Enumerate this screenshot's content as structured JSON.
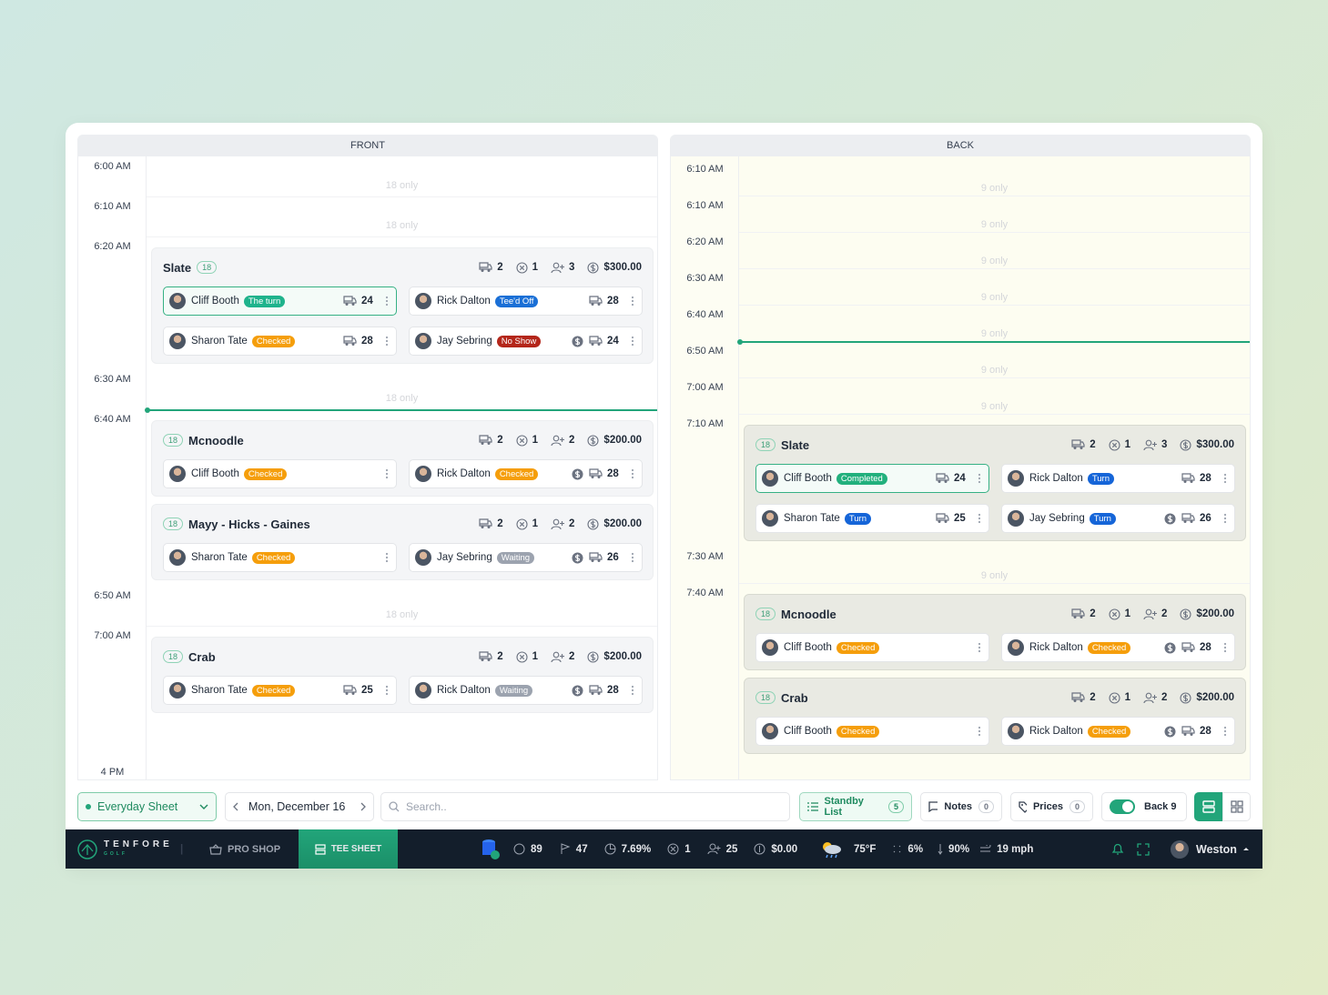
{
  "front": {
    "title": "FRONT",
    "end_time": "4 PM",
    "rows": [
      {
        "time": "6:00 AM",
        "note": "18 only"
      },
      {
        "time": "6:10 AM",
        "note": "18 only"
      },
      {
        "time": "6:20 AM",
        "groups": [
          {
            "name": "Slate",
            "holes": "18",
            "carts": "2",
            "cancels": "1",
            "players": "3",
            "price": "$300.00",
            "tee_times": [
              [
                {
                  "name": "Cliff Booth",
                  "status": "The turn",
                  "status_color": "#1fb38c",
                  "cart": "24",
                  "paid": false,
                  "active": true
                },
                {
                  "name": "Rick Dalton",
                  "status": "Tee'd Off",
                  "status_color": "#1a6fd6",
                  "cart": "28",
                  "paid": false
                }
              ],
              [
                {
                  "name": "Sharon Tate",
                  "status": "Checked",
                  "status_color": "#f59e0b",
                  "cart": "28",
                  "paid": false
                },
                {
                  "name": "Jay Sebring",
                  "status": "No Show",
                  "status_color": "#b4261a",
                  "cart": "24",
                  "paid": true
                }
              ]
            ]
          }
        ]
      },
      {
        "time": "6:30 AM",
        "note": "18 only"
      },
      {
        "time": "6:40 AM",
        "groups": [
          {
            "name": "Mcnoodle",
            "holes": "18",
            "carts": "2",
            "cancels": "1",
            "players": "2",
            "price": "$200.00",
            "tee_times": [
              [
                {
                  "name": "Cliff Booth",
                  "status": "Checked",
                  "status_color": "#f59e0b",
                  "paid": false
                },
                {
                  "name": "Rick Dalton",
                  "status": "Checked",
                  "status_color": "#f59e0b",
                  "cart": "28",
                  "paid": true
                }
              ]
            ]
          },
          {
            "name": "Mayy - Hicks - Gaines",
            "holes": "18",
            "carts": "2",
            "cancels": "1",
            "players": "2",
            "price": "$200.00",
            "tee_times": [
              [
                {
                  "name": "Sharon Tate",
                  "status": "Checked",
                  "status_color": "#f59e0b",
                  "paid": false
                },
                {
                  "name": "Jay Sebring",
                  "status": "Waiting",
                  "status_color": "#9ca3af",
                  "cart": "26",
                  "paid": true
                }
              ]
            ]
          }
        ]
      },
      {
        "time": "6:50 AM",
        "note": "18 only"
      },
      {
        "time": "7:00 AM",
        "groups": [
          {
            "name": "Crab",
            "holes": "18",
            "carts": "2",
            "cancels": "1",
            "players": "2",
            "price": "$200.00",
            "tee_times": [
              [
                {
                  "name": "Sharon Tate",
                  "status": "Checked",
                  "status_color": "#f59e0b",
                  "cart": "25",
                  "paid": false
                },
                {
                  "name": "Rick Dalton",
                  "status": "Waiting",
                  "status_color": "#9ca3af",
                  "cart": "28",
                  "paid": true
                }
              ]
            ]
          }
        ]
      }
    ]
  },
  "back": {
    "title": "BACK",
    "rows": [
      {
        "time": "6:10 AM",
        "note": "9 only"
      },
      {
        "time": "6:10 AM",
        "note": "9 only"
      },
      {
        "time": "6:20 AM",
        "note": "9 only"
      },
      {
        "time": "6:30 AM",
        "note": "9 only"
      },
      {
        "time": "6:40 AM",
        "note": "9 only"
      },
      {
        "time": "6:50 AM",
        "note": "9 only"
      },
      {
        "time": "7:00 AM",
        "note": "9 only"
      },
      {
        "time": "7:10 AM",
        "groups": [
          {
            "name": "Slate",
            "holes": "18",
            "carts": "2",
            "cancels": "1",
            "players": "3",
            "price": "$300.00",
            "tee_times": [
              [
                {
                  "name": "Cliff Booth",
                  "status": "Completed",
                  "status_color": "#22b07d",
                  "cart": "24",
                  "paid": false,
                  "active": true
                },
                {
                  "name": "Rick Dalton",
                  "status": "Turn",
                  "status_color": "#1565d8",
                  "cart": "28",
                  "paid": false
                }
              ],
              [
                {
                  "name": "Sharon Tate",
                  "status": "Turn",
                  "status_color": "#1565d8",
                  "cart": "25",
                  "paid": false
                },
                {
                  "name": "Jay Sebring",
                  "status": "Turn",
                  "status_color": "#1565d8",
                  "cart": "26",
                  "paid": true
                }
              ]
            ]
          }
        ]
      },
      {
        "time": "7:30 AM",
        "note": "9 only"
      },
      {
        "time": "7:40 AM",
        "groups": [
          {
            "name": "Mcnoodle",
            "holes": "18",
            "carts": "2",
            "cancels": "1",
            "players": "2",
            "price": "$200.00",
            "tee_times": [
              [
                {
                  "name": "Cliff Booth",
                  "status": "Checked",
                  "status_color": "#f59e0b",
                  "paid": false
                },
                {
                  "name": "Rick Dalton",
                  "status": "Checked",
                  "status_color": "#f59e0b",
                  "cart": "28",
                  "paid": true
                }
              ]
            ]
          },
          {
            "name": "Crab",
            "holes": "18",
            "carts": "2",
            "cancels": "1",
            "players": "2",
            "price": "$200.00",
            "tee_times": [
              [
                {
                  "name": "Cliff Booth",
                  "status": "Checked",
                  "status_color": "#f59e0b",
                  "paid": false
                },
                {
                  "name": "Rick Dalton",
                  "status": "Checked",
                  "status_color": "#f59e0b",
                  "cart": "28",
                  "paid": true
                }
              ]
            ]
          }
        ]
      }
    ]
  },
  "toolbar": {
    "sheet": "Everyday Sheet",
    "date": "Mon, December 16",
    "search_placeholder": "Search..",
    "standby": {
      "label": "Standby List",
      "count": "5"
    },
    "notes": {
      "label": "Notes",
      "count": "0"
    },
    "prices": {
      "label": "Prices",
      "count": "0"
    },
    "back9": {
      "label": "Back 9",
      "on": true
    }
  },
  "footer": {
    "brand": "TENFORE",
    "brand_sub": "GOLF",
    "nav": [
      "PRO SHOP",
      "TEE SHEET"
    ],
    "stats": [
      "89",
      "47",
      "7.69%",
      "1",
      "25",
      "$0.00"
    ],
    "weather": {
      "temp": "75°F",
      "precip": "6%",
      "humidity": "90%",
      "wind": "19 mph"
    },
    "user": "Weston"
  }
}
